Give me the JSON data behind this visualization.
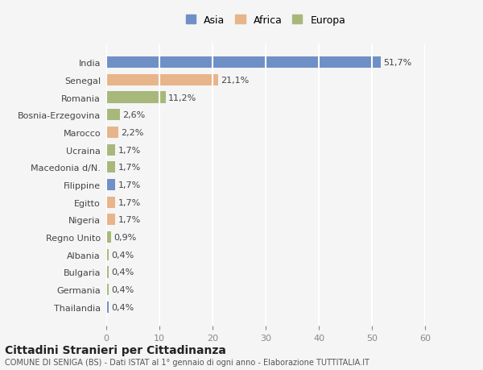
{
  "categories": [
    "India",
    "Senegal",
    "Romania",
    "Bosnia-Erzegovina",
    "Marocco",
    "Ucraina",
    "Macedonia d/N.",
    "Filippine",
    "Egitto",
    "Nigeria",
    "Regno Unito",
    "Albania",
    "Bulgaria",
    "Germania",
    "Thailandia"
  ],
  "values": [
    51.7,
    21.1,
    11.2,
    2.6,
    2.2,
    1.7,
    1.7,
    1.7,
    1.7,
    1.7,
    0.9,
    0.4,
    0.4,
    0.4,
    0.4
  ],
  "labels": [
    "51,7%",
    "21,1%",
    "11,2%",
    "2,6%",
    "2,2%",
    "1,7%",
    "1,7%",
    "1,7%",
    "1,7%",
    "1,7%",
    "0,9%",
    "0,4%",
    "0,4%",
    "0,4%",
    "0,4%"
  ],
  "continents": [
    "Asia",
    "Africa",
    "Europa",
    "Europa",
    "Africa",
    "Europa",
    "Europa",
    "Asia",
    "Africa",
    "Africa",
    "Europa",
    "Europa",
    "Europa",
    "Europa",
    "Asia"
  ],
  "colors": {
    "Asia": "#6f8fc7",
    "Africa": "#e8b48a",
    "Europa": "#a8b87a"
  },
  "legend": [
    "Asia",
    "Africa",
    "Europa"
  ],
  "legend_colors": [
    "#6f8fc7",
    "#e8b48a",
    "#a8b87a"
  ],
  "xlim": [
    0,
    60
  ],
  "xticks": [
    0,
    10,
    20,
    30,
    40,
    50,
    60
  ],
  "title": "Cittadini Stranieri per Cittadinanza",
  "subtitle": "COMUNE DI SENIGA (BS) - Dati ISTAT al 1° gennaio di ogni anno - Elaborazione TUTTITALIA.IT",
  "bg_color": "#f5f5f5",
  "grid_color": "#ffffff",
  "bar_height": 0.65
}
